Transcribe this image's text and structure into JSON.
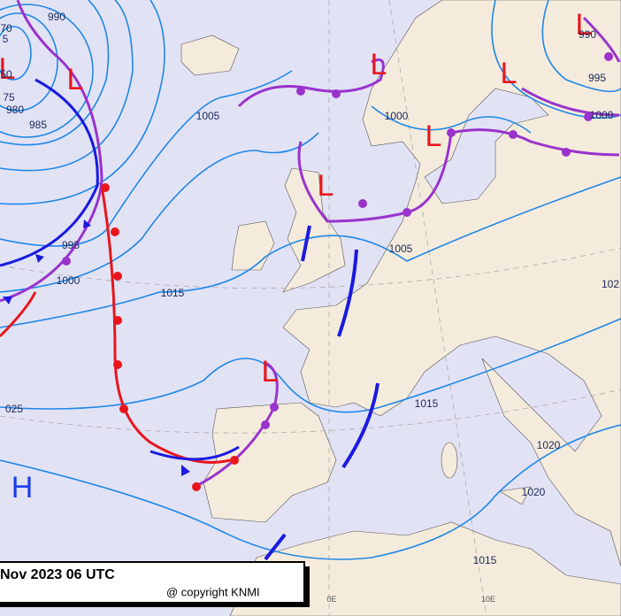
{
  "pressure_centers": [
    "L",
    "L",
    "L",
    "L",
    "L",
    "L",
    "L",
    "L",
    "H"
  ],
  "isobar_labels": [
    "990",
    "70",
    "5",
    "50",
    "75",
    "980",
    "985",
    "1005",
    "995",
    "1000",
    "1015",
    "025",
    "1005",
    "1000",
    "990",
    "995",
    "1000",
    "102",
    "1015",
    "1020",
    "1020",
    "1015"
  ],
  "meridian_labels": [
    "0E",
    "10E"
  ],
  "title": "Nov 2023 06 UTC",
  "copyright": "@ copyright KNMI"
}
